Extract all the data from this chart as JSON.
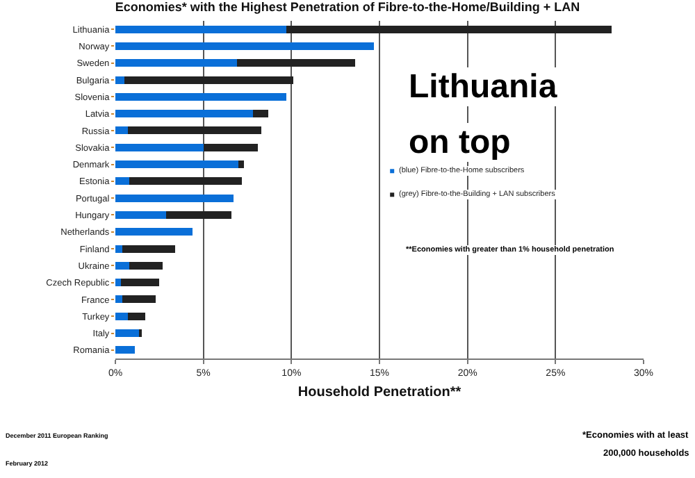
{
  "chart_data": {
    "type": "bar",
    "orientation": "horizontal",
    "stacked": true,
    "title": "Economies* with the Highest Penetration of Fibre-to-the-Home/Building + LAN",
    "xlabel": "Household Penetration**",
    "categories": [
      "Lithuania",
      "Norway",
      "Sweden",
      "Bulgaria",
      "Slovenia",
      "Latvia",
      "Russia",
      "Slovakia",
      "Denmark",
      "Estonia",
      "Portugal",
      "Hungary",
      "Netherlands",
      "Finland",
      "Ukraine",
      "Czech Republic",
      "France",
      "Turkey",
      "Italy",
      "Romania"
    ],
    "series": [
      {
        "name": "(blue) Fibre-to-the-Home subscribers",
        "color": "#0a6fd8",
        "values": [
          9.7,
          14.7,
          6.9,
          0.5,
          9.7,
          7.8,
          0.7,
          5.0,
          7.0,
          0.8,
          6.7,
          2.9,
          4.4,
          0.4,
          0.8,
          0.3,
          0.4,
          0.7,
          1.4,
          1.1
        ]
      },
      {
        "name": "(grey) Fibre-to-the-Building + LAN subscribers",
        "color": "#222222",
        "values": [
          18.5,
          0,
          6.7,
          9.6,
          0,
          0.9,
          7.6,
          3.1,
          0.3,
          6.4,
          0,
          3.7,
          0,
          3.0,
          1.9,
          2.2,
          1.9,
          1.0,
          0.1,
          0
        ]
      }
    ],
    "xlim": [
      0,
      30
    ],
    "xticks": [
      {
        "value": 0,
        "label": "0%"
      },
      {
        "value": 5,
        "label": "5%"
      },
      {
        "value": 10,
        "label": "10%"
      },
      {
        "value": 15,
        "label": "15%"
      },
      {
        "value": 20,
        "label": "20%"
      },
      {
        "value": 25,
        "label": "25%"
      },
      {
        "value": 30,
        "label": "30%"
      }
    ],
    "grid": "x",
    "legend": "right",
    "annotations": [
      "Lithuania",
      "on top",
      "**Economies with greater than 1% household penetration",
      "December 2011 European Ranking",
      "February 2012",
      "*Economies with at least",
      "200,000 households"
    ]
  }
}
